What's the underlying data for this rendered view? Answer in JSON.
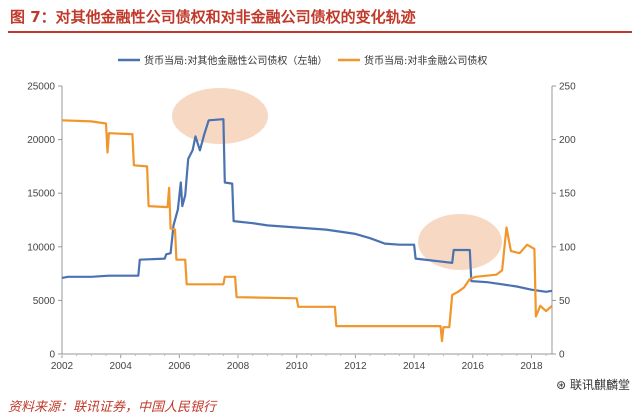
{
  "figure_title": "图 7：对其他金融性公司债权和对非金融公司债权的变化轨迹",
  "source": "资料来源：联讯证券，中国人民银行",
  "watermark": "联讯麒麟堂",
  "colors": {
    "accent": "#c0392b",
    "series1": "#4a72b0",
    "series2": "#f0962d",
    "highlight": "#f6d2b8"
  },
  "chart_data": {
    "type": "line",
    "title": "",
    "xlabel": "",
    "ylabel_left": "",
    "ylabel_right": "",
    "xlim": [
      2002,
      2018.7
    ],
    "ylim_left": [
      0,
      25000
    ],
    "ylim_right": [
      0,
      250
    ],
    "x_ticks": [
      2002,
      2004,
      2006,
      2008,
      2010,
      2012,
      2014,
      2016,
      2018
    ],
    "y_left_ticks": [
      0,
      5000,
      10000,
      15000,
      20000,
      25000
    ],
    "y_right_ticks": [
      0,
      50,
      100,
      150,
      200,
      250
    ],
    "grid": false,
    "legend_position": "top",
    "series": [
      {
        "name": "货币当局:对其他金融性公司债权（左轴）",
        "axis": "left",
        "points": [
          [
            2002,
            7100
          ],
          [
            2002.2,
            7200
          ],
          [
            2002.5,
            7200
          ],
          [
            2003,
            7200
          ],
          [
            2003.6,
            7300
          ],
          [
            2004.6,
            7300
          ],
          [
            2004.65,
            8800
          ],
          [
            2005.5,
            8900
          ],
          [
            2005.55,
            9300
          ],
          [
            2005.7,
            9400
          ],
          [
            2005.8,
            12000
          ],
          [
            2005.95,
            13500
          ],
          [
            2006.05,
            16000
          ],
          [
            2006.1,
            13800
          ],
          [
            2006.2,
            14800
          ],
          [
            2006.3,
            18200
          ],
          [
            2006.45,
            19000
          ],
          [
            2006.55,
            20300
          ],
          [
            2006.7,
            19000
          ],
          [
            2006.85,
            20500
          ],
          [
            2007.0,
            21800
          ],
          [
            2007.5,
            21900
          ],
          [
            2007.55,
            16000
          ],
          [
            2007.8,
            15900
          ],
          [
            2007.85,
            12400
          ],
          [
            2008.5,
            12200
          ],
          [
            2009.0,
            12000
          ],
          [
            2010.0,
            11800
          ],
          [
            2011.0,
            11600
          ],
          [
            2012.0,
            11200
          ],
          [
            2012.5,
            10800
          ],
          [
            2013.0,
            10300
          ],
          [
            2013.5,
            10200
          ],
          [
            2014.0,
            10200
          ],
          [
            2014.05,
            8900
          ],
          [
            2015.0,
            8600
          ],
          [
            2015.3,
            8500
          ],
          [
            2015.35,
            9700
          ],
          [
            2015.9,
            9700
          ],
          [
            2015.95,
            6800
          ],
          [
            2016.5,
            6700
          ],
          [
            2017.0,
            6500
          ],
          [
            2017.5,
            6300
          ],
          [
            2018.0,
            6000
          ],
          [
            2018.5,
            5800
          ],
          [
            2018.7,
            5900
          ]
        ]
      },
      {
        "name": "货币当局:对非金融公司债权",
        "axis": "right",
        "points": [
          [
            2002,
            218
          ],
          [
            2003,
            217
          ],
          [
            2003.5,
            215
          ],
          [
            2003.55,
            188
          ],
          [
            2003.6,
            206
          ],
          [
            2004.4,
            205
          ],
          [
            2004.45,
            176
          ],
          [
            2004.9,
            175
          ],
          [
            2004.95,
            138
          ],
          [
            2005.6,
            137
          ],
          [
            2005.65,
            155
          ],
          [
            2005.7,
            117
          ],
          [
            2005.85,
            116
          ],
          [
            2005.9,
            88
          ],
          [
            2006.2,
            88
          ],
          [
            2006.25,
            65
          ],
          [
            2007.5,
            65
          ],
          [
            2007.55,
            72
          ],
          [
            2007.9,
            72
          ],
          [
            2007.95,
            53
          ],
          [
            2010.0,
            52
          ],
          [
            2010.05,
            44
          ],
          [
            2011.3,
            44
          ],
          [
            2011.35,
            26
          ],
          [
            2014.9,
            26
          ],
          [
            2014.95,
            12
          ],
          [
            2015.0,
            25
          ],
          [
            2015.2,
            25
          ],
          [
            2015.3,
            55
          ],
          [
            2015.5,
            58
          ],
          [
            2015.7,
            62
          ],
          [
            2015.9,
            70
          ],
          [
            2016.1,
            72
          ],
          [
            2016.8,
            74
          ],
          [
            2017.0,
            78
          ],
          [
            2017.15,
            118
          ],
          [
            2017.3,
            96
          ],
          [
            2017.6,
            94
          ],
          [
            2017.85,
            102
          ],
          [
            2018.1,
            98
          ],
          [
            2018.15,
            35
          ],
          [
            2018.3,
            45
          ],
          [
            2018.5,
            40
          ],
          [
            2018.7,
            45
          ]
        ]
      }
    ]
  }
}
